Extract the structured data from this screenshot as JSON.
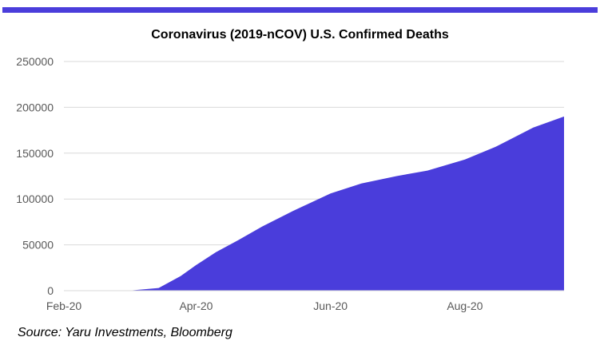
{
  "colors": {
    "accent": "#4a3ddb",
    "grid": "#d9d9d9",
    "axis_text": "#595959"
  },
  "chart_data": {
    "type": "area",
    "title": "Coronavirus (2019-nCOV) U.S. Confirmed Deaths",
    "xlabel": "",
    "ylabel": "",
    "ylim": [
      0,
      250000
    ],
    "yticks": [
      "0",
      "50000",
      "100000",
      "150000",
      "200000",
      "250000"
    ],
    "xticks": [
      "Feb-20",
      "Apr-20",
      "Jun-20",
      "Aug-20"
    ],
    "grid": true,
    "legend": "none",
    "x": [
      "2020-02-01",
      "2020-03-01",
      "2020-03-15",
      "2020-03-25",
      "2020-04-01",
      "2020-04-10",
      "2020-04-20",
      "2020-05-01",
      "2020-05-15",
      "2020-06-01",
      "2020-06-15",
      "2020-07-01",
      "2020-07-15",
      "2020-08-01",
      "2020-08-15",
      "2020-09-01",
      "2020-09-15"
    ],
    "series": [
      {
        "values": [
          0,
          0,
          3000,
          16000,
          28000,
          42000,
          55000,
          70000,
          87000,
          106000,
          117000,
          125000,
          131000,
          143000,
          157000,
          178000,
          190000
        ]
      }
    ]
  },
  "footer": {
    "source": "Source: Yaru Investments, Bloomberg"
  }
}
